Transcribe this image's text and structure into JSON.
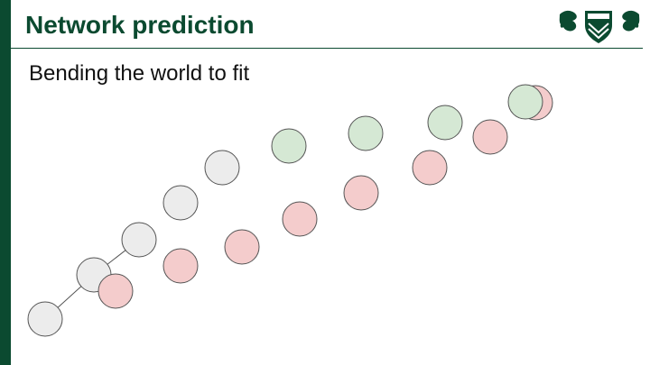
{
  "slide": {
    "title": "Network prediction",
    "subtitle": "Bending the world to fit"
  },
  "colors": {
    "brand_green": "#0b4a30",
    "gray_node": "#ececec",
    "green_node": "#d5e8d4",
    "red_node": "#f4cccc",
    "node_stroke": "#555555"
  },
  "logo": {
    "name": "university-crest-logo"
  }
}
